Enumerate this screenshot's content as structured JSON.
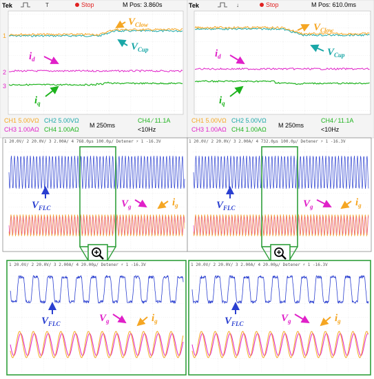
{
  "top_panels": [
    {
      "brand": "Tek",
      "status": "Stop",
      "mpos": "M Pos: 3.860s",
      "ch1": "CH1  5.00VΩ",
      "ch2": "CH2  5.00VΩ",
      "ch3": "CH3  1.00AΩ",
      "ch4": "CH4  1.00AΩ",
      "timebase": "M 250ms",
      "trigger": "CH4 ∕ 11.1A",
      "freq": "<10Hz",
      "labels": {
        "vclow_main": "V",
        "vclow_sub": "Clow",
        "vcup_main": "V",
        "vcup_sub": "Cup",
        "id_main": "i",
        "id_sub": "d",
        "iq_main": "i",
        "iq_sub": "q"
      }
    },
    {
      "brand": "Tek",
      "status": "Stop",
      "mpos": "M Pos: 610.0ms",
      "ch1": "CH1  5.00VΩ",
      "ch2": "CH2  5.00VΩ",
      "ch3": "CH3  1.00AΩ",
      "ch4": "CH4  1.00AΩ",
      "timebase": "M 250ms",
      "trigger": "CH4 ∕ 11.1A",
      "freq": "<10Hz",
      "labels": {
        "vclow_main": "V",
        "vclow_sub": "Clow",
        "vcup_main": "V",
        "vcup_sub": "Cup",
        "id_main": "i",
        "id_sub": "d",
        "iq_main": "i",
        "iq_sub": "q"
      }
    }
  ],
  "mid_panels": [
    {
      "header": "1  20.0V/   2  20.0V/   3  2.00A/   4     768.0μs     100.0μ/     Detener     ⚡    1    -16.3V",
      "labels": {
        "vflc_main": "V",
        "vflc_sub": "FLC",
        "vg_main": "V",
        "vg_sub": "g",
        "ig_main": "i",
        "ig_sub": "g"
      }
    },
    {
      "header": "1  20.0V/   2  20.0V/   3  2.00A/   4     732.0μs     100.0μ/     Detener     ⚡    1    -16.3V",
      "labels": {
        "vflc_main": "V",
        "vflc_sub": "FLC",
        "vg_main": "V",
        "vg_sub": "g",
        "ig_main": "i",
        "ig_sub": "g"
      }
    }
  ],
  "bot_panels": [
    {
      "header": "1  20.0V/   2  20.0V/   3  2.00A/   4          20.00μ/     Detener     ⚡    1    -16.3V",
      "labels": {
        "vflc_main": "V",
        "vflc_sub": "FLC",
        "vg_main": "V",
        "vg_sub": "g",
        "ig_main": "i",
        "ig_sub": "g"
      }
    },
    {
      "header": "1  20.0V/   2  20.0V/   3  2.00A/   4          20.00μ/     Detener     ⚡    1    -16.3V",
      "labels": {
        "vflc_main": "V",
        "vflc_sub": "FLC",
        "vg_main": "V",
        "vg_sub": "g",
        "ig_main": "i",
        "ig_sub": "g"
      }
    }
  ],
  "colors": {
    "orange": "#f5a623",
    "cyan": "#1aa7a7",
    "magenta": "#e020c8",
    "green": "#1db31d",
    "blue": "#2a3fd0",
    "zoom_frame": "#2e9e3a"
  },
  "icons": {
    "zoom": "magnifier-plus-icon"
  }
}
